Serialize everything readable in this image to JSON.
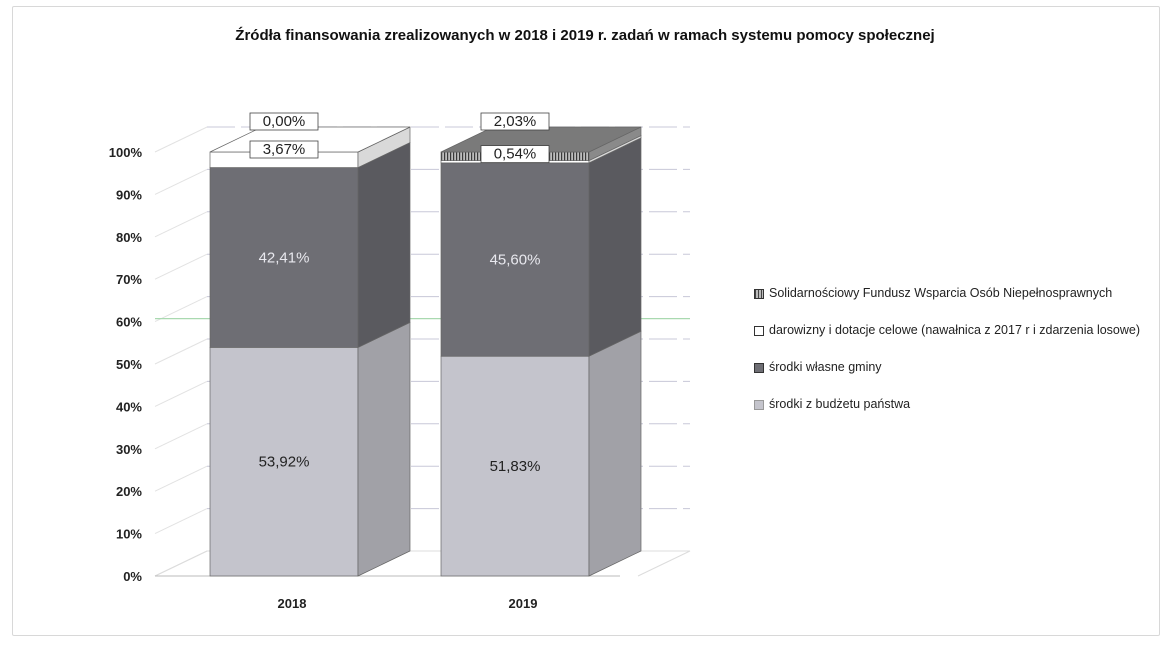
{
  "chart_data": {
    "type": "bar",
    "stacked": true,
    "title": "Źródła finansowania zrealizowanych w 2018 i 2019 r. zadań w ramach systemu pomocy społecznej",
    "categories": [
      "2018",
      "2019"
    ],
    "series": [
      {
        "name": "środki z budżetu państwa",
        "values": [
          53.92,
          51.83
        ],
        "labels": [
          "53,92%",
          "51,83%"
        ],
        "color": "#c4c4cc"
      },
      {
        "name": "środki własne gminy",
        "values": [
          42.41,
          45.6
        ],
        "labels": [
          "42,41%",
          "45,60%"
        ],
        "color": "#6e6e74"
      },
      {
        "name": "darowizny i dotacje celowe (nawałnica z 2017 r i zdarzenia losowe)",
        "values": [
          3.67,
          0.54
        ],
        "labels": [
          "3,67%",
          "0,54%"
        ],
        "color": "#ffffff"
      },
      {
        "name": "Solidarnościowy Fundusz Wsparcia Osób Niepełnosprawnych",
        "values": [
          0.0,
          2.03
        ],
        "labels": [
          "0,00%",
          "2,03%"
        ],
        "color": "#999999"
      }
    ],
    "yticks": [
      "0%",
      "10%",
      "20%",
      "30%",
      "40%",
      "50%",
      "60%",
      "70%",
      "80%",
      "90%",
      "100%"
    ],
    "ylim": [
      0,
      100
    ],
    "grid": true,
    "legend_position": "right",
    "xlabel": "",
    "ylabel": ""
  },
  "legend": [
    {
      "label": "Solidarnościowy Fundusz Wsparcia Osób Niepełnosprawnych"
    },
    {
      "label": "darowizny i dotacje celowe (nawałnica z 2017 r i zdarzenia losowe)"
    },
    {
      "label": "środki własne gminy"
    },
    {
      "label": "środki z budżetu państwa"
    }
  ]
}
